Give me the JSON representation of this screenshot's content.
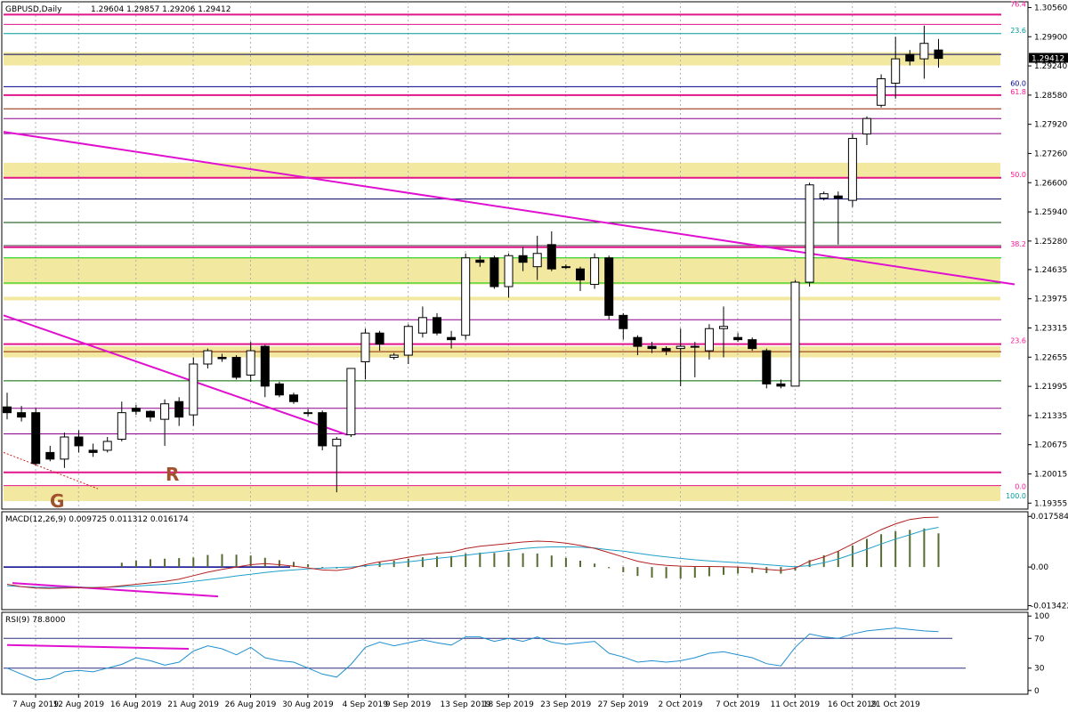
{
  "chart_data": {
    "type": "candlestick",
    "symbol": "GBPUSD,Daily",
    "ohlc_header": "1.29604 1.29857 1.29206 1.29412",
    "current_price": "1.29412",
    "x_tick_labels": [
      "7 Aug 2019",
      "12 Aug 2019",
      "16 Aug 2019",
      "21 Aug 2019",
      "26 Aug 2019",
      "30 Aug 2019",
      "4 Sep 2019",
      "9 Sep 2019",
      "13 Sep 2019",
      "18 Sep 2019",
      "23 Sep 2019",
      "27 Sep 2019",
      "2 Oct 2019",
      "7 Oct 2019",
      "11 Oct 2019",
      "16 Oct 2019",
      "21 Oct 2019"
    ],
    "x_tick_index": [
      0,
      3,
      7,
      11,
      15,
      19,
      23,
      26,
      30,
      33,
      37,
      41,
      45,
      49,
      53,
      57,
      60
    ],
    "y_tick_labels": [
      "1.30560",
      "1.29900",
      "1.29240",
      "1.28580",
      "1.27920",
      "1.27260",
      "1.26600",
      "1.25940",
      "1.25280",
      "1.24635",
      "1.23975",
      "1.23315",
      "1.22655",
      "1.21995",
      "1.21335",
      "1.20675",
      "1.20015",
      "1.19355"
    ],
    "ylim": [
      1.1922,
      1.3069
    ],
    "candles": [
      {
        "o": 1.2153,
        "h": 1.2185,
        "l": 1.2125,
        "c": 1.214
      },
      {
        "o": 1.214,
        "h": 1.2155,
        "l": 1.212,
        "c": 1.213
      },
      {
        "o": 1.214,
        "h": 1.215,
        "l": 1.202,
        "c": 1.2025
      },
      {
        "o": 1.205,
        "h": 1.2065,
        "l": 1.203,
        "c": 1.2035
      },
      {
        "o": 1.2035,
        "h": 1.2095,
        "l": 1.2015,
        "c": 1.2085
      },
      {
        "o": 1.2085,
        "h": 1.21,
        "l": 1.205,
        "c": 1.2065
      },
      {
        "o": 1.2055,
        "h": 1.207,
        "l": 1.204,
        "c": 1.205
      },
      {
        "o": 1.2055,
        "h": 1.2085,
        "l": 1.205,
        "c": 1.2075
      },
      {
        "o": 1.208,
        "h": 1.2165,
        "l": 1.2075,
        "c": 1.214
      },
      {
        "o": 1.215,
        "h": 1.2158,
        "l": 1.2135,
        "c": 1.2143
      },
      {
        "o": 1.2143,
        "h": 1.2145,
        "l": 1.212,
        "c": 1.213
      },
      {
        "o": 1.2125,
        "h": 1.217,
        "l": 1.2065,
        "c": 1.216
      },
      {
        "o": 1.2165,
        "h": 1.2175,
        "l": 1.211,
        "c": 1.213
      },
      {
        "o": 1.2135,
        "h": 1.2265,
        "l": 1.211,
        "c": 1.225
      },
      {
        "o": 1.225,
        "h": 1.2285,
        "l": 1.224,
        "c": 1.228
      },
      {
        "o": 1.2265,
        "h": 1.2273,
        "l": 1.2255,
        "c": 1.2262
      },
      {
        "o": 1.2265,
        "h": 1.227,
        "l": 1.2215,
        "c": 1.222
      },
      {
        "o": 1.2225,
        "h": 1.23,
        "l": 1.221,
        "c": 1.228
      },
      {
        "o": 1.229,
        "h": 1.2293,
        "l": 1.2175,
        "c": 1.22
      },
      {
        "o": 1.2205,
        "h": 1.221,
        "l": 1.2175,
        "c": 1.218
      },
      {
        "o": 1.218,
        "h": 1.2185,
        "l": 1.216,
        "c": 1.2165
      },
      {
        "o": 1.214,
        "h": 1.2148,
        "l": 1.2132,
        "c": 1.214
      },
      {
        "o": 1.214,
        "h": 1.2145,
        "l": 1.2055,
        "c": 1.2065
      },
      {
        "o": 1.2065,
        "h": 1.2085,
        "l": 1.196,
        "c": 1.208
      },
      {
        "o": 1.209,
        "h": 1.224,
        "l": 1.2085,
        "c": 1.224
      },
      {
        "o": 1.2255,
        "h": 1.233,
        "l": 1.2215,
        "c": 1.232
      },
      {
        "o": 1.232,
        "h": 1.2325,
        "l": 1.228,
        "c": 1.2295
      },
      {
        "o": 1.2265,
        "h": 1.2275,
        "l": 1.226,
        "c": 1.227
      },
      {
        "o": 1.227,
        "h": 1.234,
        "l": 1.225,
        "c": 1.2335
      },
      {
        "o": 1.232,
        "h": 1.238,
        "l": 1.231,
        "c": 1.2355
      },
      {
        "o": 1.2355,
        "h": 1.2365,
        "l": 1.2315,
        "c": 1.232
      },
      {
        "o": 1.231,
        "h": 1.2325,
        "l": 1.2285,
        "c": 1.2305
      },
      {
        "o": 1.2315,
        "h": 1.25,
        "l": 1.2305,
        "c": 1.249
      },
      {
        "o": 1.2485,
        "h": 1.2495,
        "l": 1.247,
        "c": 1.248
      },
      {
        "o": 1.249,
        "h": 1.2495,
        "l": 1.242,
        "c": 1.2425
      },
      {
        "o": 1.2425,
        "h": 1.25,
        "l": 1.24,
        "c": 1.2495
      },
      {
        "o": 1.2495,
        "h": 1.2515,
        "l": 1.246,
        "c": 1.248
      },
      {
        "o": 1.247,
        "h": 1.254,
        "l": 1.244,
        "c": 1.25
      },
      {
        "o": 1.252,
        "h": 1.255,
        "l": 1.246,
        "c": 1.2465
      },
      {
        "o": 1.247,
        "h": 1.2475,
        "l": 1.2465,
        "c": 1.247
      },
      {
        "o": 1.2465,
        "h": 1.247,
        "l": 1.2415,
        "c": 1.244
      },
      {
        "o": 1.243,
        "h": 1.25,
        "l": 1.242,
        "c": 1.249
      },
      {
        "o": 1.249,
        "h": 1.2495,
        "l": 1.235,
        "c": 1.236
      },
      {
        "o": 1.236,
        "h": 1.2365,
        "l": 1.2305,
        "c": 1.233
      },
      {
        "o": 1.231,
        "h": 1.2315,
        "l": 1.227,
        "c": 1.229
      },
      {
        "o": 1.229,
        "h": 1.23,
        "l": 1.2275,
        "c": 1.2285
      },
      {
        "o": 1.2285,
        "h": 1.229,
        "l": 1.227,
        "c": 1.228
      },
      {
        "o": 1.2285,
        "h": 1.233,
        "l": 1.22,
        "c": 1.229
      },
      {
        "o": 1.229,
        "h": 1.23,
        "l": 1.222,
        "c": 1.229
      },
      {
        "o": 1.228,
        "h": 1.234,
        "l": 1.226,
        "c": 1.233
      },
      {
        "o": 1.233,
        "h": 1.238,
        "l": 1.2265,
        "c": 1.2335
      },
      {
        "o": 1.231,
        "h": 1.232,
        "l": 1.23,
        "c": 1.2305
      },
      {
        "o": 1.2305,
        "h": 1.231,
        "l": 1.228,
        "c": 1.2285
      },
      {
        "o": 1.228,
        "h": 1.2285,
        "l": 1.2195,
        "c": 1.2205
      },
      {
        "o": 1.2205,
        "h": 1.2215,
        "l": 1.2195,
        "c": 1.22
      },
      {
        "o": 1.22,
        "h": 1.244,
        "l": 1.22,
        "c": 1.2435
      },
      {
        "o": 1.2435,
        "h": 1.266,
        "l": 1.2425,
        "c": 1.2655
      },
      {
        "o": 1.2625,
        "h": 1.264,
        "l": 1.262,
        "c": 1.2635
      },
      {
        "o": 1.263,
        "h": 1.264,
        "l": 1.252,
        "c": 1.2625
      },
      {
        "o": 1.262,
        "h": 1.277,
        "l": 1.2605,
        "c": 1.276
      },
      {
        "o": 1.277,
        "h": 1.281,
        "l": 1.2745,
        "c": 1.2805
      },
      {
        "o": 1.2835,
        "h": 1.2905,
        "l": 1.283,
        "c": 1.2895
      },
      {
        "o": 1.2885,
        "h": 1.299,
        "l": 1.285,
        "c": 1.294
      },
      {
        "o": 1.295,
        "h": 1.296,
        "l": 1.2925,
        "c": 1.2935
      },
      {
        "o": 1.294,
        "h": 1.3015,
        "l": 1.2895,
        "c": 1.2975
      },
      {
        "o": 1.296,
        "h": 1.2985,
        "l": 1.292,
        "c": 1.2941
      }
    ],
    "fib_labels": [
      {
        "text": "76.4",
        "price": 1.3056,
        "color": "#ff1493"
      },
      {
        "text": "23.6",
        "price": 1.2997,
        "color": "#009999"
      },
      {
        "text": "60.0",
        "price": 1.2877,
        "color": "#00008b"
      },
      {
        "text": "61.8",
        "price": 1.2858,
        "color": "#ff1493"
      },
      {
        "text": "50.0",
        "price": 1.2671,
        "color": "#ff1493"
      },
      {
        "text": "38.2",
        "price": 1.2514,
        "color": "#ff1493"
      },
      {
        "text": "23.6",
        "price": 1.2295,
        "color": "#ff1493"
      },
      {
        "text": "0.0",
        "price": 1.1965,
        "color": "#ff1493"
      },
      {
        "text": "100.0",
        "price": 1.1944,
        "color": "#009999"
      }
    ],
    "chart_letters": [
      {
        "text": "R",
        "color": "#a0522d"
      },
      {
        "text": "G",
        "color": "#a0522d"
      }
    ],
    "macd": {
      "title": "MACD(12,26,9) 0.009725 0.011312 0.016174",
      "y_tick_labels": [
        "0.017584",
        "0.00",
        "-0.013422"
      ],
      "ylim": [
        -0.0148,
        0.0192
      ],
      "hist": [
        0.0,
        0.0,
        0.0,
        0.0,
        0.0,
        0.0,
        0.0,
        0.0,
        0.0015,
        0.0023,
        0.0027,
        0.0029,
        0.0031,
        0.0033,
        0.0042,
        0.0045,
        0.0043,
        0.004,
        0.0032,
        0.0024,
        0.0018,
        0.001,
        -0.0003,
        -0.0005,
        0.0,
        0.0009,
        0.0017,
        0.0022,
        0.0029,
        0.0034,
        0.0037,
        0.0038,
        0.0047,
        0.005,
        0.0049,
        0.005,
        0.0048,
        0.0047,
        0.004,
        0.0032,
        0.0022,
        0.0012,
        -0.0004,
        -0.0018,
        -0.0031,
        -0.0037,
        -0.0039,
        -0.004,
        -0.0037,
        -0.0032,
        -0.0027,
        -0.0023,
        -0.002,
        -0.0021,
        -0.0023,
        -0.0012,
        0.0024,
        0.0041,
        0.0056,
        0.0075,
        0.0098,
        0.0114,
        0.0124,
        0.0129,
        0.0134,
        0.0117
      ],
      "macd_line": [
        -0.006,
        -0.0068,
        -0.0073,
        -0.0074,
        -0.0073,
        -0.0072,
        -0.0072,
        -0.007,
        -0.0065,
        -0.006,
        -0.0055,
        -0.005,
        -0.0042,
        -0.003,
        -0.0018,
        -0.0008,
        0.0,
        0.0008,
        0.0012,
        0.0008,
        0.0003,
        -0.0003,
        -0.001,
        -0.0012,
        -0.0005,
        0.0008,
        0.0018,
        0.0025,
        0.0034,
        0.0042,
        0.0048,
        0.0052,
        0.0064,
        0.0072,
        0.0077,
        0.0082,
        0.0087,
        0.009,
        0.0088,
        0.0083,
        0.0075,
        0.0065,
        0.005,
        0.0035,
        0.002,
        0.0011,
        0.0006,
        0.0003,
        0.0002,
        0.0002,
        0.0001,
        0.0,
        -0.0003,
        -0.0008,
        -0.0012,
        -0.0004,
        0.002,
        0.0035,
        0.0055,
        0.008,
        0.0105,
        0.013,
        0.015,
        0.0165,
        0.0172,
        0.0173
      ],
      "signal_line": [
        -0.0065,
        -0.0068,
        -0.007,
        -0.0071,
        -0.0071,
        -0.0071,
        -0.0071,
        -0.007,
        -0.0068,
        -0.0066,
        -0.0063,
        -0.006,
        -0.0056,
        -0.005,
        -0.0044,
        -0.0038,
        -0.0031,
        -0.0025,
        -0.0019,
        -0.0014,
        -0.001,
        -0.0006,
        -0.0004,
        -0.0002,
        0.0,
        0.0004,
        0.0009,
        0.0013,
        0.0018,
        0.0024,
        0.003,
        0.0035,
        0.0041,
        0.0047,
        0.0052,
        0.0058,
        0.0064,
        0.0068,
        0.007,
        0.007,
        0.0069,
        0.0066,
        0.006,
        0.0055,
        0.0048,
        0.0041,
        0.0035,
        0.003,
        0.0025,
        0.0021,
        0.0018,
        0.0015,
        0.0012,
        0.0008,
        0.0004,
        0.0001,
        0.0005,
        0.0015,
        0.0028,
        0.0045,
        0.0062,
        0.008,
        0.0097,
        0.0112,
        0.0128,
        0.0138
      ]
    },
    "rsi": {
      "title": "RSI(9) 78.8000",
      "y_tick_labels": [
        "100",
        "70",
        "30",
        "0"
      ],
      "levels": [
        100,
        70,
        30,
        0
      ],
      "ylim": [
        -5,
        105
      ],
      "values": [
        30,
        22,
        14,
        16,
        25,
        27,
        25,
        30,
        35,
        44,
        40,
        34,
        38,
        53,
        60,
        56,
        48,
        58,
        44,
        40,
        38,
        30,
        22,
        18,
        35,
        58,
        65,
        60,
        64,
        68,
        64,
        61,
        72,
        72,
        66,
        70,
        66,
        72,
        65,
        62,
        64,
        66,
        50,
        45,
        38,
        40,
        38,
        40,
        44,
        50,
        52,
        48,
        44,
        36,
        33,
        58,
        76,
        72,
        70,
        76,
        80,
        82,
        84,
        82,
        80,
        79
      ]
    }
  }
}
